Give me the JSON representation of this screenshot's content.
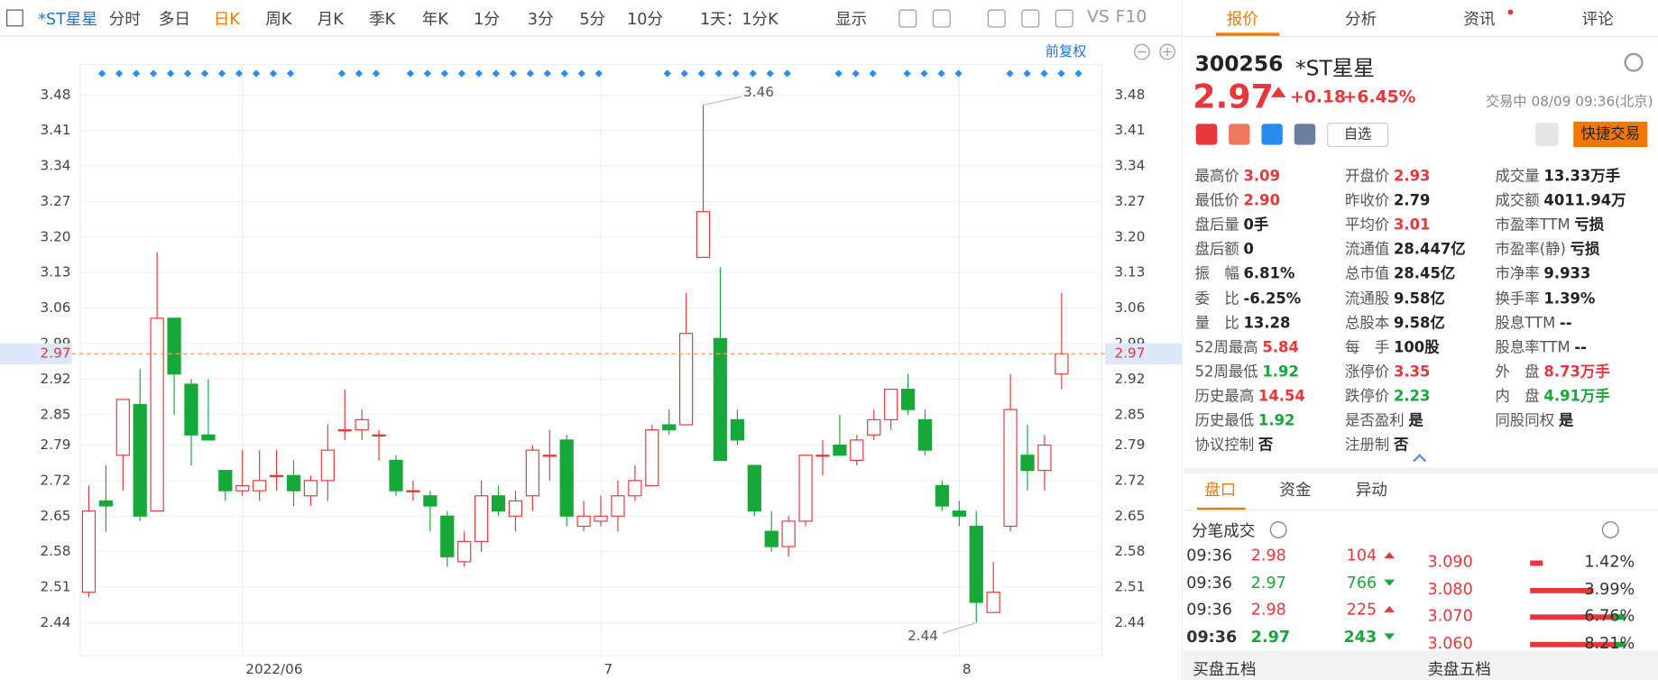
{
  "toolbar": {
    "symbol": "*ST星星",
    "periods": [
      "分时",
      "多日",
      "日K",
      "周K",
      "月K",
      "季K",
      "年K",
      "1分",
      "3分",
      "5分",
      "10分"
    ],
    "active": "日K",
    "minute": "1天：1分K",
    "display": "显示",
    "vs": "VS",
    "f10": "F10"
  },
  "chart_data": {
    "type": "candlestick",
    "adjust_label": "前复权",
    "categories": [
      null,
      null,
      null,
      null,
      null,
      null,
      null,
      null,
      null,
      "2022/06",
      null,
      null,
      null,
      null,
      null,
      null,
      null,
      null,
      null,
      null,
      null,
      null,
      null,
      null,
      null,
      null,
      null,
      null,
      null,
      null,
      "7",
      null,
      null,
      null,
      null,
      null,
      null,
      null,
      null,
      null,
      null,
      null,
      null,
      null,
      null,
      null,
      null,
      null,
      null,
      null,
      null,
      "8",
      null,
      null,
      null,
      null,
      null,
      null
    ],
    "open": [
      2.5,
      2.68,
      2.77,
      2.87,
      2.66,
      3.04,
      2.91,
      2.81,
      2.74,
      2.7,
      2.7,
      2.73,
      2.73,
      2.69,
      2.72,
      2.82,
      2.82,
      2.81,
      2.76,
      2.7,
      2.69,
      2.65,
      2.56,
      2.6,
      2.69,
      2.65,
      2.69,
      2.77,
      2.8,
      2.63,
      2.64,
      2.65,
      2.69,
      2.71,
      2.83,
      2.83,
      3.16,
      3.0,
      2.84,
      2.75,
      2.62,
      2.59,
      2.64,
      2.77,
      2.79,
      2.76,
      2.81,
      2.84,
      2.9,
      2.84,
      2.71,
      2.66,
      2.63,
      2.46,
      2.63,
      2.77,
      2.74,
      2.93
    ],
    "close": [
      2.66,
      2.67,
      2.88,
      2.65,
      3.04,
      2.93,
      2.81,
      2.8,
      2.7,
      2.71,
      2.72,
      2.73,
      2.7,
      2.72,
      2.78,
      2.82,
      2.84,
      2.81,
      2.7,
      2.7,
      2.67,
      2.57,
      2.6,
      2.69,
      2.66,
      2.68,
      2.78,
      2.77,
      2.65,
      2.65,
      2.65,
      2.69,
      2.72,
      2.82,
      2.82,
      3.01,
      3.25,
      2.76,
      2.8,
      2.66,
      2.59,
      2.64,
      2.77,
      2.77,
      2.77,
      2.8,
      2.84,
      2.9,
      2.86,
      2.78,
      2.67,
      2.65,
      2.48,
      2.5,
      2.86,
      2.74,
      2.79,
      2.97
    ],
    "high": [
      2.71,
      2.75,
      2.88,
      2.94,
      3.17,
      3.04,
      2.92,
      2.92,
      2.74,
      2.78,
      2.78,
      2.78,
      2.76,
      2.73,
      2.83,
      2.9,
      2.86,
      2.82,
      2.77,
      2.72,
      2.7,
      2.66,
      2.62,
      2.72,
      2.71,
      2.7,
      2.79,
      2.82,
      2.81,
      2.68,
      2.69,
      2.72,
      2.75,
      2.83,
      2.86,
      3.09,
      3.46,
      3.14,
      2.86,
      2.75,
      2.66,
      2.65,
      2.77,
      2.8,
      2.85,
      2.81,
      2.86,
      2.9,
      2.93,
      2.86,
      2.72,
      2.68,
      2.66,
      2.56,
      2.93,
      2.83,
      2.81,
      3.09
    ],
    "low": [
      2.49,
      2.62,
      2.7,
      2.64,
      2.66,
      2.85,
      2.75,
      2.8,
      2.68,
      2.69,
      2.68,
      2.7,
      2.67,
      2.67,
      2.68,
      2.8,
      2.8,
      2.76,
      2.69,
      2.68,
      2.62,
      2.55,
      2.55,
      2.58,
      2.65,
      2.62,
      2.66,
      2.72,
      2.63,
      2.62,
      2.63,
      2.62,
      2.68,
      2.71,
      2.81,
      2.83,
      3.16,
      2.76,
      2.79,
      2.65,
      2.58,
      2.57,
      2.63,
      2.73,
      2.77,
      2.75,
      2.8,
      2.82,
      2.85,
      2.77,
      2.66,
      2.63,
      2.44,
      2.46,
      2.62,
      2.7,
      2.7,
      2.9
    ],
    "up_color": "#e8363a",
    "down_color": "#17a83a",
    "ylim": [
      2.375,
      3.54
    ],
    "yticks": [
      3.48,
      3.41,
      3.34,
      3.27,
      {
        "value": 3.2,
        "label": "3.20"
      },
      3.13,
      3.06,
      2.99,
      2.92,
      2.85,
      2.79,
      2.72,
      2.65,
      2.58,
      2.51,
      2.44
    ],
    "high_label": 3.46,
    "low_label": 2.44,
    "last_price": 2.97,
    "grid": true
  },
  "panel": {
    "tabs": [
      "报价",
      "分析",
      "资讯",
      "评论"
    ],
    "code": "300256",
    "name": "*ST星星",
    "price": "2.97",
    "change": "+0.18",
    "pct": "+6.45%",
    "status": "交易中 08/09 09:36(北京)",
    "watch": "自选",
    "trade": "快捷交易",
    "stats": [
      [
        {
          "label": "最高价",
          "value": "3.09",
          "tone": "up"
        },
        {
          "label": "最低价",
          "value": "2.90",
          "tone": "up"
        },
        {
          "label": "盘后量",
          "value": "0手"
        },
        {
          "label": "盘后额",
          "value": "0"
        },
        {
          "label": "振　幅",
          "value": "6.81%"
        },
        {
          "label": "委　比",
          "value": "-6.25%"
        },
        {
          "label": "量　比",
          "value": "13.28"
        },
        {
          "label": "52周最高",
          "value": "5.84",
          "tone": "up"
        },
        {
          "label": "52周最低",
          "value": "1.92",
          "tone": "down"
        },
        {
          "label": "历史最高",
          "value": "14.54",
          "tone": "up"
        },
        {
          "label": "历史最低",
          "value": "1.92",
          "tone": "down"
        },
        {
          "label": "协议控制",
          "value": "否"
        }
      ],
      [
        {
          "label": "开盘价",
          "value": "2.93",
          "tone": "up"
        },
        {
          "label": "昨收价",
          "value": "2.79"
        },
        {
          "label": "平均价",
          "value": "3.01",
          "tone": "up"
        },
        {
          "label": "流通值",
          "value": "28.447亿"
        },
        {
          "label": "总市值",
          "value": "28.45亿"
        },
        {
          "label": "流通股",
          "value": "9.58亿"
        },
        {
          "label": "总股本",
          "value": "9.58亿"
        },
        {
          "label": "每　手",
          "value": "100股"
        },
        {
          "label": "涨停价",
          "value": "3.35",
          "tone": "up"
        },
        {
          "label": "跌停价",
          "value": "2.23",
          "tone": "down"
        },
        {
          "label": "是否盈利",
          "value": "是"
        },
        {
          "label": "注册制",
          "value": "否"
        }
      ],
      [
        {
          "label": "成交量",
          "value": "13.33万手"
        },
        {
          "label": "成交额",
          "value": "4011.94万"
        },
        {
          "label": "市盈率TTM",
          "value": "亏损"
        },
        {
          "label": "市盈率(静)",
          "value": "亏损"
        },
        {
          "label": "市净率",
          "value": "9.933"
        },
        {
          "label": "换手率",
          "value": "1.39%"
        },
        {
          "label": "股息TTM",
          "value": "--"
        },
        {
          "label": "股息率TTM",
          "value": "--"
        },
        {
          "label": "外　盘",
          "value": "8.73万手",
          "tone": "up"
        },
        {
          "label": "内　盘",
          "value": "4.91万手",
          "tone": "down"
        },
        {
          "label": "同股同权",
          "value": "是"
        }
      ]
    ],
    "subtabs": [
      "盘口",
      "资金",
      "异动"
    ],
    "trades_title": "分笔成交",
    "trades": [
      {
        "time": "09:36",
        "price": "2.98",
        "vol": "104",
        "tone": "up"
      },
      {
        "time": "09:36",
        "price": "2.97",
        "vol": "766",
        "tone": "down"
      },
      {
        "time": "09:36",
        "price": "2.98",
        "vol": "225",
        "tone": "up"
      },
      {
        "time": "09:36",
        "price": "2.97",
        "vol": "243",
        "tone": "down"
      }
    ],
    "depth": [
      {
        "price": "3.090",
        "pct": "1.42%"
      },
      {
        "price": "3.080",
        "pct": "3.99%"
      },
      {
        "price": "3.070",
        "pct": "6.76%"
      },
      {
        "price": "3.060",
        "pct": "8.21%"
      }
    ],
    "buy5": "买盘五档",
    "sell5": "卖盘五档"
  }
}
